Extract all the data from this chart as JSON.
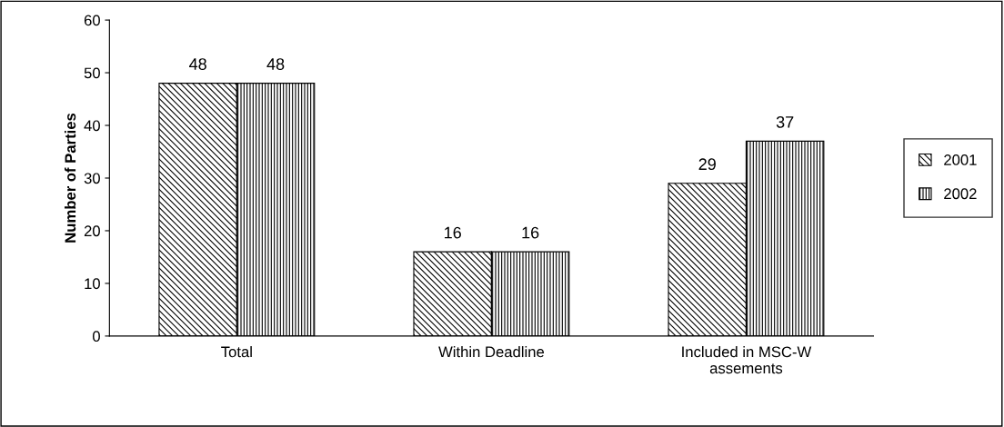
{
  "chart_data": {
    "type": "bar",
    "ylabel": "Number of Parties",
    "categories": [
      "Total",
      "Within Deadline",
      "Included in MSC-W\nassements"
    ],
    "series": [
      {
        "name": "2001",
        "color": "#000000",
        "values": [
          48,
          16,
          29
        ]
      },
      {
        "name": "2002",
        "color": "#000000",
        "values": [
          48,
          16,
          37
        ]
      }
    ],
    "ylim": [
      0,
      60
    ],
    "yticks": [
      0,
      10,
      20,
      30,
      40,
      50,
      60
    ],
    "data_labels": true,
    "grid": false,
    "legend": "right"
  }
}
